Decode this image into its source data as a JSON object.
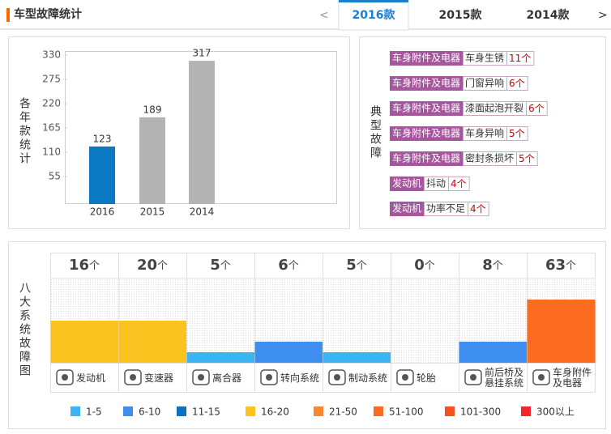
{
  "header": {
    "title": "车型故障统计",
    "nav": [
      "<",
      ">"
    ],
    "tabs": [
      "2016款",
      "2015款",
      "2014款"
    ],
    "active_tab": 0
  },
  "unit": "个",
  "chart_data": [
    {
      "type": "bar",
      "ylabel": "各年款统计",
      "categories": [
        "2016",
        "2015",
        "2014"
      ],
      "values": [
        123,
        189,
        317
      ],
      "colors": [
        "#0a78c2",
        "#b3b3b3",
        "#b3b3b3"
      ],
      "ylim": [
        0,
        330
      ],
      "yticks": [
        55,
        110,
        165,
        220,
        275,
        330
      ],
      "grid": false
    },
    {
      "type": "level-bar",
      "title": "八大系统故障图",
      "categories": [
        "发动机",
        "变速器",
        "离合器",
        "转向系统",
        "制动系统",
        "轮胎",
        "前后桥及悬挂系统",
        "车身附件及电器"
      ],
      "values": [
        16,
        20,
        5,
        6,
        5,
        0,
        8,
        63
      ],
      "legend": [
        {
          "label": "1-5",
          "color": "#3ab4f2"
        },
        {
          "label": "6-10",
          "color": "#3e8ef0"
        },
        {
          "label": "11-15",
          "color": "#0a71c0"
        },
        {
          "label": "16-20",
          "color": "#fcc220"
        },
        {
          "label": "21-50",
          "color": "#f7882f"
        },
        {
          "label": "51-100",
          "color": "#fb6c21"
        },
        {
          "label": "101-300",
          "color": "#f4511e"
        },
        {
          "label": "300以上",
          "color": "#f2272e"
        }
      ]
    }
  ],
  "typical_faults": {
    "title": "典型故障",
    "items": [
      {
        "system": "车身附件及电器",
        "fault": "车身生锈",
        "count": 11
      },
      {
        "system": "车身附件及电器",
        "fault": "门窗异响",
        "count": 6
      },
      {
        "system": "车身附件及电器",
        "fault": "漆面起泡开裂",
        "count": 6
      },
      {
        "system": "车身附件及电器",
        "fault": "车身异响",
        "count": 5
      },
      {
        "system": "车身附件及电器",
        "fault": "密封条损坏",
        "count": 5
      },
      {
        "system": "发动机",
        "fault": "抖动",
        "count": 4
      },
      {
        "system": "发动机",
        "fault": "功率不足",
        "count": 4
      }
    ]
  }
}
